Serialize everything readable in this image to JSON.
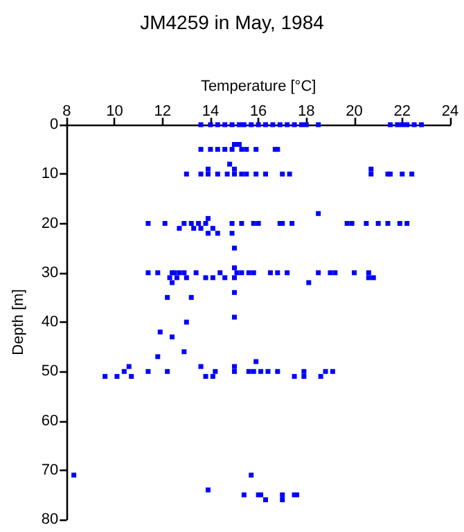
{
  "chart_data": {
    "type": "scatter",
    "title": "JM4259 in May, 1984",
    "xlabel": "Temperature [°C]",
    "ylabel": "Depth [m]",
    "xlim": [
      8,
      24
    ],
    "xticks": [
      8,
      10,
      12,
      14,
      16,
      18,
      20,
      22,
      24
    ],
    "ylim": [
      80,
      0
    ],
    "yticks": [
      0,
      10,
      20,
      30,
      40,
      50,
      60,
      70,
      80
    ],
    "grid": false,
    "marker": "square",
    "series": [
      {
        "color": "#0000ff",
        "x": [
          13.6,
          14.0,
          14.3,
          14.6,
          14.9,
          15.2,
          15.4,
          15.7,
          16.0,
          16.3,
          16.6,
          16.9,
          17.2,
          17.5,
          17.8,
          18.0,
          18.5,
          21.5,
          21.8,
          22.0,
          22.2,
          22.5,
          22.8,
          15.0,
          15.2,
          13.6,
          14.0,
          14.3,
          14.6,
          14.9,
          15.3,
          15.5,
          15.9,
          16.7,
          16.8,
          14.8,
          13.9,
          15.0,
          13.0,
          13.6,
          13.9,
          14.3,
          14.7,
          15.0,
          15.3,
          15.5,
          15.9,
          16.3,
          17.0,
          17.3,
          20.7,
          20.7,
          21.4,
          21.5,
          22.0,
          22.4,
          18.5,
          13.9,
          11.4,
          12.1,
          12.9,
          13.2,
          13.5,
          13.8,
          14.9,
          15.3,
          15.8,
          16.0,
          16.9,
          17.0,
          17.4,
          19.7,
          19.9,
          20.5,
          21.0,
          21.4,
          21.9,
          22.2,
          12.7,
          13.3,
          13.6,
          14.1,
          13.9,
          14.3,
          14.9,
          15.0,
          15.0,
          11.4,
          11.8,
          12.4,
          12.5,
          12.7,
          12.9,
          13.4,
          14.4,
          15.1,
          15.3,
          15.6,
          15.8,
          16.5,
          16.8,
          17.2,
          18.5,
          19.0,
          19.2,
          20.0,
          20.6,
          12.3,
          12.6,
          13.0,
          13.8,
          14.1,
          14.6,
          15.0,
          20.6,
          20.8,
          12.4,
          18.1,
          15.0,
          12.2,
          13.2,
          15.0,
          13.0,
          11.9,
          12.4,
          12.9,
          11.8,
          15.9,
          10.6,
          13.6,
          15.0,
          10.4,
          11.4,
          12.2,
          14.2,
          15.0,
          15.6,
          15.8,
          16.1,
          16.4,
          16.8,
          17.9,
          18.8,
          19.1,
          9.6,
          10.1,
          10.7,
          13.8,
          14.1,
          17.5,
          17.9,
          18.6,
          8.3,
          15.7,
          13.9,
          15.4,
          16.0,
          16.1,
          17.0,
          17.5,
          17.6,
          16.3,
          17.0
        ],
        "values": [
          0,
          0,
          0,
          0,
          0,
          0,
          0,
          0,
          0,
          0,
          0,
          0,
          0,
          0,
          0,
          0,
          0,
          0,
          0,
          0,
          0,
          0,
          0,
          4,
          4,
          5,
          5,
          5,
          5,
          5,
          5,
          5,
          5,
          5,
          5,
          8,
          9,
          9,
          10,
          10,
          10,
          10,
          10,
          10,
          10,
          10,
          10,
          10,
          10,
          10,
          9,
          10,
          10,
          10,
          10,
          10,
          18,
          19,
          20,
          20,
          20,
          20,
          20,
          20,
          20,
          20,
          20,
          20,
          20,
          20,
          20,
          20,
          20,
          20,
          20,
          20,
          20,
          20,
          21,
          21,
          21,
          21,
          22,
          22,
          22,
          25,
          29,
          30,
          30,
          30,
          30,
          30,
          30,
          30,
          30,
          30,
          30,
          30,
          30,
          30,
          30,
          30,
          30,
          30,
          30,
          30,
          30,
          31,
          31,
          31,
          31,
          31,
          31,
          31,
          31,
          31,
          32,
          32,
          34,
          35,
          35,
          39,
          40,
          42,
          43,
          46,
          47,
          48,
          49,
          49,
          49,
          50,
          50,
          50,
          50,
          50,
          50,
          50,
          50,
          50,
          50,
          50,
          50,
          50,
          51,
          51,
          51,
          51,
          51,
          51,
          51,
          51,
          71,
          71,
          74,
          75,
          75,
          75,
          75,
          75,
          75,
          76,
          76
        ]
      }
    ]
  }
}
